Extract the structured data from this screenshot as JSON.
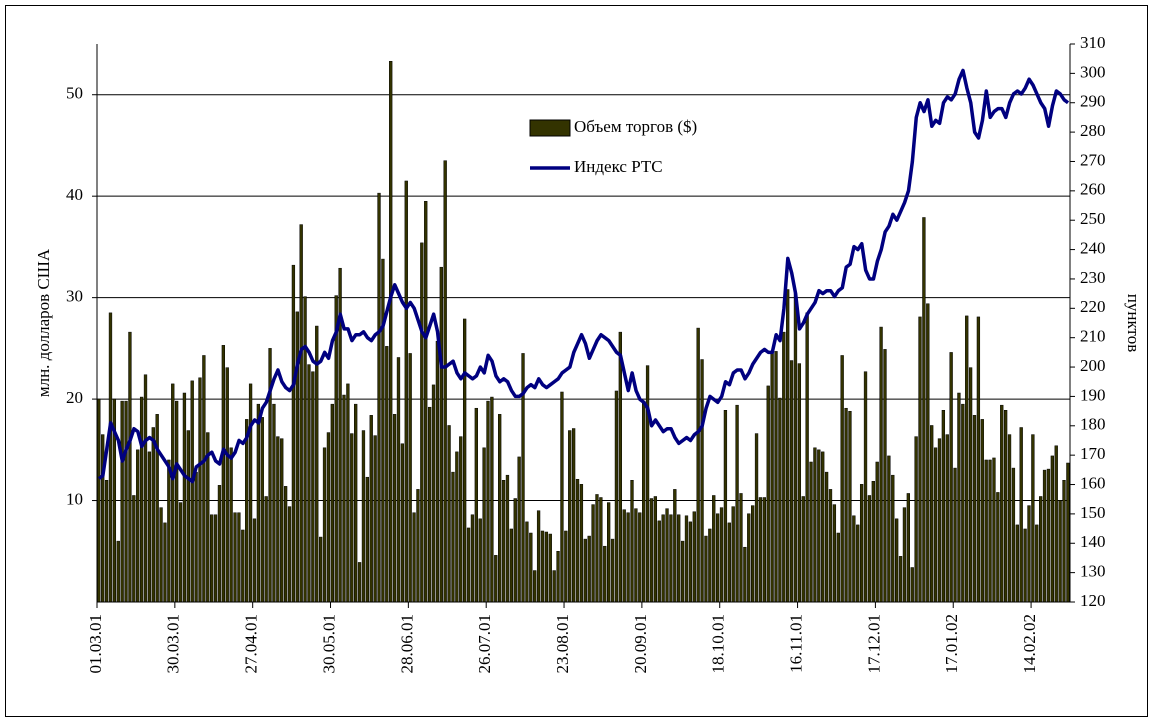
{
  "chart_data": {
    "type": "bar",
    "y_label": "млн. долларов США",
    "y2_label": "пунктов",
    "categories": [
      "01.03.01",
      null,
      null,
      null,
      null,
      null,
      null,
      null,
      null,
      null,
      null,
      null,
      null,
      null,
      null,
      null,
      null,
      null,
      null,
      null,
      "30.03.01",
      null,
      null,
      null,
      null,
      null,
      null,
      null,
      null,
      null,
      null,
      null,
      null,
      null,
      null,
      null,
      null,
      null,
      null,
      null,
      "27.04.01",
      null,
      null,
      null,
      null,
      null,
      null,
      null,
      null,
      null,
      null,
      null,
      null,
      null,
      null,
      null,
      null,
      null,
      null,
      null,
      "30.05.01",
      null,
      null,
      null,
      null,
      null,
      null,
      null,
      null,
      null,
      null,
      null,
      null,
      null,
      null,
      null,
      null,
      null,
      null,
      null,
      "28.06.01",
      null,
      null,
      null,
      null,
      null,
      null,
      null,
      null,
      null,
      null,
      null,
      null,
      null,
      null,
      null,
      null,
      null,
      null,
      null,
      "26.07.01",
      null,
      null,
      null,
      null,
      null,
      null,
      null,
      null,
      null,
      null,
      null,
      null,
      null,
      null,
      null,
      null,
      null,
      null,
      null,
      "23.08.01",
      null,
      null,
      null,
      null,
      null,
      null,
      null,
      null,
      null,
      null,
      null,
      null,
      null,
      null,
      null,
      null,
      null,
      null,
      null,
      "20.09.01",
      null,
      null,
      null,
      null,
      null,
      null,
      null,
      null,
      null,
      null,
      null,
      null,
      null,
      null,
      null,
      null,
      null,
      null,
      null,
      "18.10.01",
      null,
      null,
      null,
      null,
      null,
      null,
      null,
      null,
      null,
      null,
      null,
      null,
      null,
      null,
      null,
      null,
      null,
      null,
      null,
      "16.11.01",
      null,
      null,
      null,
      null,
      null,
      null,
      null,
      null,
      null,
      null,
      null,
      null,
      null,
      null,
      null,
      null,
      null,
      null,
      null,
      "17.12.01",
      null,
      null,
      null,
      null,
      null,
      null,
      null,
      null,
      null,
      null,
      null,
      null,
      null,
      null,
      null,
      null,
      null,
      null,
      null,
      "17.01.02",
      null,
      null,
      null,
      null,
      null,
      null,
      null,
      null,
      null,
      null,
      null,
      null,
      null,
      null,
      null,
      null,
      null,
      null,
      null,
      "14.02.02",
      null,
      null,
      null,
      null,
      null,
      null,
      null,
      null,
      null
    ],
    "series": [
      {
        "name": "Объем торгов ($)",
        "type": "bar",
        "color": "#333300",
        "values": [
          20,
          16.5,
          12,
          28.5,
          20,
          6,
          19.8,
          19.8,
          26.6,
          10.5,
          15,
          20.2,
          22.4,
          14.8,
          17.2,
          18.5,
          9.3,
          7.8,
          14,
          21.5,
          19.8,
          9.8,
          20.6,
          16.9,
          21.8,
          12.8,
          22.1,
          24.3,
          16.7,
          8.6,
          8.6,
          11.5,
          25.3,
          23.1,
          15.2,
          8.8,
          8.8,
          7.1,
          18,
          21.5,
          8.2,
          19.5,
          18.2,
          10.4,
          25,
          19.5,
          16.3,
          16.1,
          11.4,
          9.4,
          33.2,
          28.6,
          37.2,
          30.1,
          23.4,
          22.7,
          27.2,
          6.4,
          15.2,
          16.7,
          19.5,
          30.2,
          32.9,
          20.4,
          21.5,
          16.6,
          19.5,
          3.9,
          16.9,
          12.3,
          18.4,
          16.4,
          40.3,
          33.8,
          25.2,
          53.3,
          18.5,
          24.1,
          15.6,
          41.5,
          24.5,
          8.8,
          11.1,
          35.4,
          39.5,
          19.2,
          21.4,
          25.7,
          33,
          43.5,
          17.4,
          12.8,
          14.8,
          16.3,
          27.9,
          7.3,
          8.6,
          19.1,
          8.2,
          15.2,
          19.8,
          20.2,
          4.6,
          18.5,
          12,
          12.5,
          7.2,
          10.2,
          14.3,
          24.5,
          7.9,
          6.8,
          3.1,
          9,
          7,
          6.9,
          6.7,
          3.1,
          5,
          20.7,
          7,
          16.9,
          17.1,
          12.1,
          11.6,
          6.2,
          6.5,
          9.6,
          10.6,
          10.3,
          5.5,
          9.8,
          6.2,
          20.8,
          26.6,
          9.1,
          8.8,
          12,
          9.2,
          8.8,
          19.8,
          23.3,
          10.2,
          10.4,
          8,
          8.6,
          9.2,
          8.6,
          11.1,
          8.6,
          6,
          8.5,
          7.9,
          8.9,
          27,
          23.9,
          6.5,
          7.2,
          10.5,
          8.7,
          9.3,
          18.9,
          7.8,
          9.4,
          19.4,
          10.7,
          5.4,
          8.7,
          9.5,
          16.6,
          10.3,
          10.3,
          21.3,
          24.5,
          24.7,
          20.1,
          26.6,
          30.8,
          23.8,
          30.4,
          23.5,
          10.4,
          28.5,
          13.8,
          15.2,
          15,
          14.8,
          12.8,
          11.1,
          9.6,
          6.8,
          24.3,
          19.1,
          18.8,
          8.5,
          7.6,
          11.6,
          22.7,
          10.5,
          11.9,
          13.8,
          27.1,
          24.9,
          14.4,
          12.5,
          8.2,
          4.5,
          9.3,
          10.7,
          3.4,
          16.3,
          28.1,
          37.9,
          29.4,
          17.4,
          15.2,
          16.1,
          18.9,
          16.5,
          24.6,
          13.2,
          20.6,
          19.5,
          28.2,
          23.1,
          18.4,
          28.1,
          18,
          14,
          14,
          14.2,
          10.8,
          19.4,
          18.9,
          16.5,
          13.2,
          7.6,
          17.2,
          7.2,
          9.5,
          16.5,
          7.6,
          10.4,
          13,
          13.1,
          14.4,
          15.4,
          10,
          12,
          13.7
        ]
      },
      {
        "name": "Индекс РТС",
        "type": "line",
        "axis": "y2",
        "color": "#000080",
        "values": [
          162,
          163,
          172,
          181,
          178,
          175,
          168,
          172,
          175,
          179,
          178,
          173,
          175,
          176,
          175,
          172,
          170,
          168,
          166,
          162,
          167,
          165,
          163,
          162,
          161,
          166,
          167,
          168,
          170,
          171,
          168,
          167,
          172,
          170,
          169,
          171,
          175,
          174,
          176,
          180,
          182,
          181,
          186,
          188,
          192,
          196,
          199,
          195,
          193,
          192,
          194,
          201,
          206,
          207,
          205,
          202,
          201,
          202,
          205,
          203,
          209,
          212,
          218,
          213,
          213,
          209,
          211,
          211,
          212,
          210,
          209,
          211,
          212,
          214,
          219,
          224,
          228,
          225,
          222,
          220,
          222,
          220,
          216,
          212,
          210,
          214,
          218,
          212,
          200,
          200,
          201,
          202,
          198,
          196,
          198,
          197,
          196,
          197,
          200,
          198,
          204,
          202,
          197,
          195,
          196,
          195,
          192,
          190,
          190,
          191,
          193,
          194,
          193,
          196,
          194,
          193,
          194,
          195,
          196,
          198,
          199,
          200,
          205,
          208,
          211,
          208,
          203,
          206,
          209,
          211,
          210,
          209,
          207,
          205,
          204,
          198,
          192,
          198,
          192,
          189,
          188,
          186,
          180,
          182,
          180,
          178,
          179,
          179,
          176,
          174,
          175,
          176,
          175,
          177,
          178,
          180,
          186,
          190,
          189,
          188,
          190,
          195,
          194,
          198,
          199,
          199,
          196,
          198,
          201,
          203,
          205,
          206,
          205,
          205,
          211,
          209,
          220,
          237,
          232,
          225,
          213,
          215,
          218,
          220,
          222,
          226,
          225,
          226,
          226,
          224,
          226,
          227,
          234,
          235,
          241,
          240,
          242,
          233,
          230,
          230,
          236,
          240,
          246,
          248,
          252,
          250,
          253,
          256,
          260,
          270,
          285,
          290,
          287,
          291,
          282,
          284,
          283,
          290,
          292,
          291,
          293,
          298,
          301,
          295,
          290,
          280,
          278,
          284,
          294,
          285,
          287,
          288,
          288,
          285,
          290,
          293,
          294,
          293,
          295,
          298,
          296,
          293,
          290,
          288,
          282,
          289,
          294,
          293,
          291,
          290
        ]
      }
    ],
    "ylim": [
      0,
      55
    ],
    "yticks": [
      10,
      20,
      30,
      40,
      50
    ],
    "y2lim": [
      120,
      310
    ],
    "y2ticks": [
      120,
      130,
      140,
      150,
      160,
      170,
      180,
      190,
      200,
      210,
      220,
      230,
      240,
      250,
      260,
      270,
      280,
      290,
      300,
      310
    ],
    "grid": true
  }
}
